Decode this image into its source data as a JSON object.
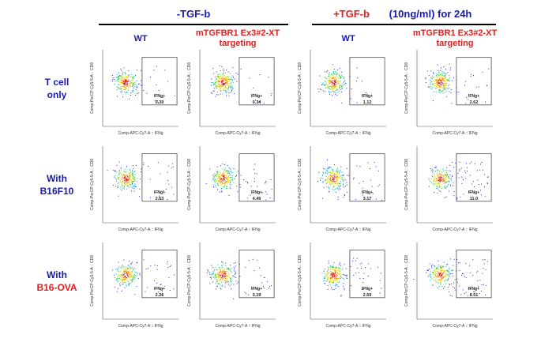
{
  "column_groups": [
    {
      "label": "-TGF-b"
    },
    {
      "label": "+TGF-b",
      "detail": "(10ng/ml) for 24h"
    }
  ],
  "columns": [
    {
      "label": [
        "WT"
      ]
    },
    {
      "label": [
        "mTGFBR1 Ex3#2-XT",
        "targeting"
      ]
    },
    {
      "label": [
        "WT"
      ]
    },
    {
      "label": [
        "mTGFBR1 Ex3#2-XT",
        "targeting"
      ]
    }
  ],
  "rows": [
    {
      "label": [
        "T cell",
        "only"
      ]
    },
    {
      "label": [
        "With",
        "B16F10"
      ]
    },
    {
      "label": [
        "With",
        "B16-OVA"
      ]
    }
  ],
  "gate_label": "IFNg+",
  "x_axis_label": "Comp-APC-Cy7-A :: IFNg",
  "y_axis_label": "Comp-PerCP-Cy5-5-A :: CD8",
  "plots": [
    [
      "0.39",
      "0.34",
      "1.12",
      "2.62"
    ],
    [
      "2.53",
      "4.49",
      "3.17",
      "11.0"
    ],
    [
      "2.26",
      "3.19",
      "2.69",
      "8.51"
    ]
  ]
}
